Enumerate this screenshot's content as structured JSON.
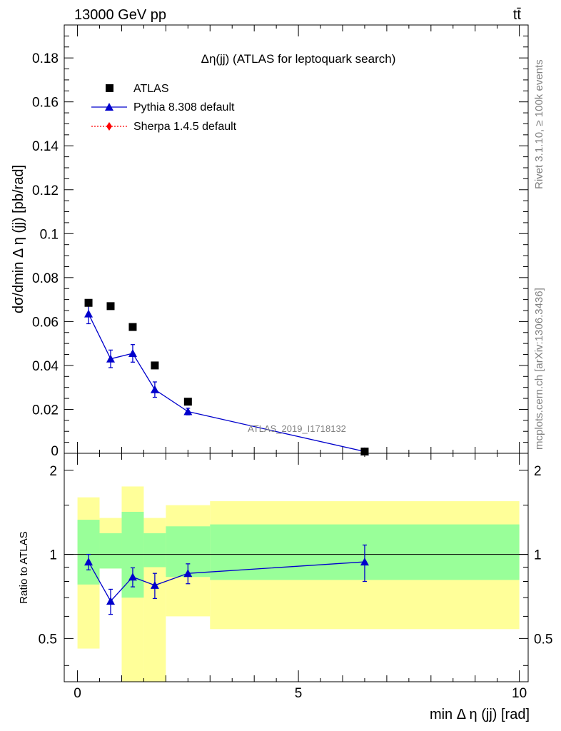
{
  "header": {
    "left": "13000 GeV pp",
    "right": "tt̄"
  },
  "side_labels": {
    "rivet": "Rivet 3.1.10, ≥ 100k events",
    "mcplots": "mcplots.cern.ch [arXiv:1306.3436]"
  },
  "chart_data": [
    {
      "type": "scatter",
      "title": "Δη(jj) (ATLAS for leptoquark search)",
      "ylabel": "dσ/dmin Δ η (jj) [pb/rad]",
      "xlabel": "",
      "xlim": [
        -0.3,
        10.2
      ],
      "ylim": [
        0,
        0.195
      ],
      "grid": false,
      "legend_position": "top-left",
      "analysis_tag": "ATLAS_2019_I1718132",
      "x_ticks": [
        "0",
        "5",
        "10"
      ],
      "y_ticks": [
        "0.02",
        "0.04",
        "0.06",
        "0.08",
        "0.1",
        "0.12",
        "0.14",
        "0.16",
        "0.18"
      ],
      "y_zero_label": "0",
      "series": [
        {
          "name": "ATLAS",
          "marker": "square",
          "color": "#000000",
          "x": [
            0.25,
            0.75,
            1.25,
            1.75,
            2.5,
            6.5
          ],
          "y": [
            0.0685,
            0.067,
            0.0575,
            0.04,
            0.0235,
            0.0008
          ]
        },
        {
          "name": "Pythia 8.308 default",
          "marker": "triangle",
          "color": "#0000cc",
          "x": [
            0.25,
            0.75,
            1.25,
            1.75,
            2.5,
            6.5
          ],
          "y": [
            0.0635,
            0.043,
            0.0455,
            0.029,
            0.019,
            0.0008
          ],
          "yerr": [
            0.0045,
            0.004,
            0.004,
            0.0035,
            0.0015,
            0.0002
          ]
        },
        {
          "name": "Sherpa 1.4.5 default",
          "marker": "diamond",
          "color": "#ff0000",
          "line": "dotted",
          "x": [],
          "y": []
        }
      ]
    },
    {
      "type": "scatter",
      "ylabel": "Ratio to ATLAS",
      "xlabel": "min Δ η (jj) [rad]",
      "xlim": [
        -0.3,
        10.2
      ],
      "ylim": [
        0.35,
        2.3
      ],
      "grid": false,
      "x_ticks": [
        "0",
        "5",
        "10"
      ],
      "y_ticks": [
        "0.5",
        "1",
        "2"
      ],
      "reference_line": 1,
      "bands": {
        "bin_edges": [
          0,
          0.5,
          1.0,
          1.5,
          2.0,
          3.0,
          10.0
        ],
        "inner_color": "#99ff99",
        "outer_color": "#ffff99",
        "inner_low": [
          0.78,
          0.89,
          0.7,
          0.9,
          0.83,
          0.81
        ],
        "inner_high": [
          1.33,
          1.19,
          1.42,
          1.19,
          1.26,
          1.28
        ],
        "outer_low": [
          0.46,
          0.89,
          0.35,
          0.35,
          0.6,
          0.54
        ],
        "outer_high": [
          1.6,
          1.35,
          1.75,
          1.35,
          1.5,
          1.55
        ]
      },
      "series": [
        {
          "name": "Pythia 8.308 default",
          "marker": "triangle",
          "color": "#0000cc",
          "x": [
            0.25,
            0.75,
            1.25,
            1.75,
            2.5,
            6.5
          ],
          "y": [
            0.94,
            0.68,
            0.83,
            0.775,
            0.855,
            0.94
          ],
          "yerr": [
            0.06,
            0.07,
            0.065,
            0.08,
            0.07,
            0.14
          ]
        }
      ]
    }
  ]
}
